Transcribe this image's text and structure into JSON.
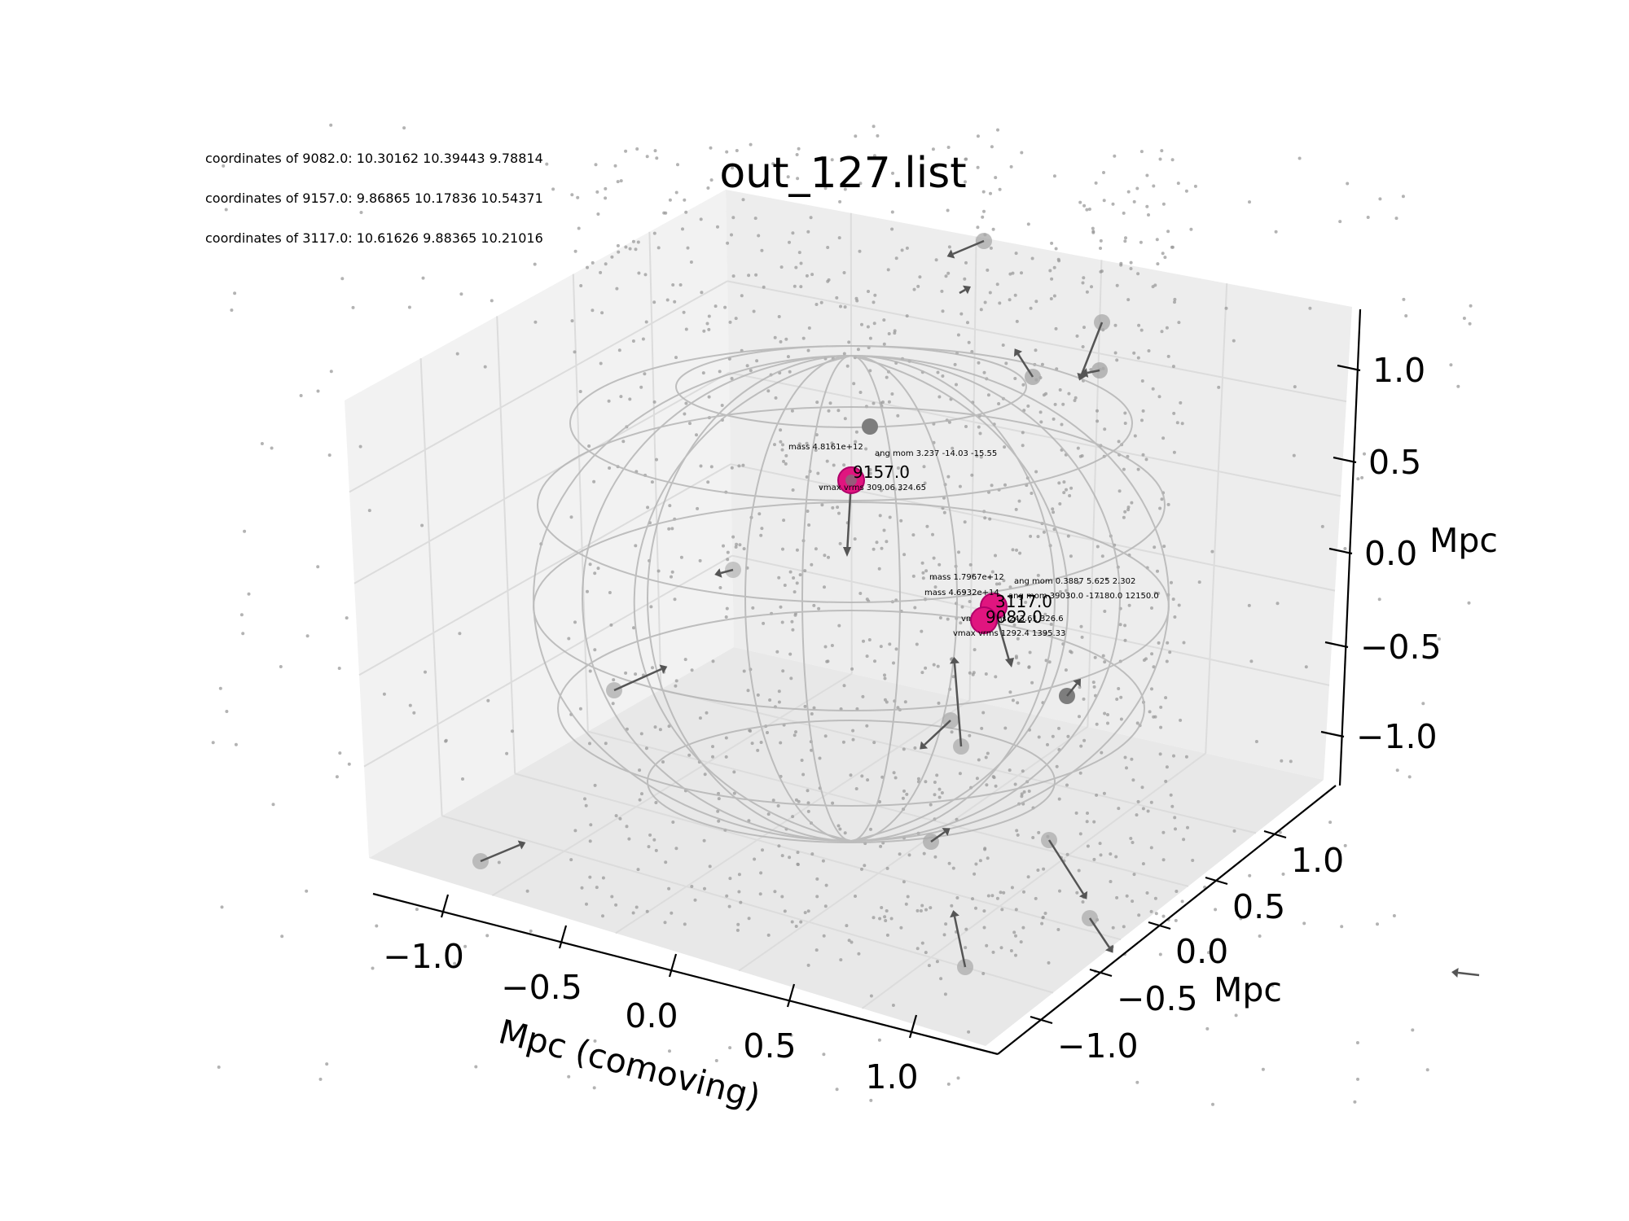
{
  "chart_data": {
    "type": "scatter",
    "projection": "3d",
    "title": "out_127.list",
    "xlabel": "Mpc (comoving)",
    "ylabel": "Mpc",
    "zlabel": "Mpc",
    "xlim": [
      -1.25,
      1.25
    ],
    "ylim": [
      -1.25,
      1.25
    ],
    "zlim": [
      -1.25,
      1.25
    ],
    "x_ticks": [
      "−1.0",
      "−0.5",
      "0.0",
      "0.5",
      "1.0"
    ],
    "y_ticks": [
      "−1.0",
      "−0.5",
      "0.0",
      "0.5",
      "1.0"
    ],
    "z_ticks": [
      "−1.0",
      "−0.5",
      "0.0",
      "0.5",
      "1.0"
    ],
    "grid": true,
    "info_lines": [
      "coordinates of 9082.0: 10.30162 10.39443 9.78814",
      "coordinates of 9157.0: 9.86865 10.17836 10.54371",
      "coordinates of 3117.0: 10.61626 9.88365 10.21016"
    ],
    "highlighted_halos": [
      {
        "id": "9157.0",
        "mass": "mass 4.8161e+12",
        "ang_mom": "ang mom 3.237 -14.03 -15.55",
        "vmax_vrms": "vmax vrms 309.06 324.65",
        "color": "#e0157f"
      },
      {
        "id": "3117.0",
        "mass": "mass 1.7967e+12",
        "ang_mom": "ang mom 0.3887 5.625 2.302",
        "vmax_vrms": "vmax vrms 243.61 326.6",
        "color": "#e0157f"
      },
      {
        "id": "9082.0",
        "mass": "mass 4.6932e+14",
        "ang_mom": "ang mom 39030.0 -17180.0 12150.0",
        "vmax_vrms": "vmax vrms 1292.4 1395.33",
        "color": "#e0157f"
      }
    ],
    "colors": {
      "highlight": "#e0157f",
      "particles": "#9a9a9a",
      "neighbor_halos": "#a8a8a8",
      "arrows": "#555555",
      "sphere_wireframe": "#b5b5b5",
      "pane": "#f2f2f2",
      "grid": "#dddddd"
    }
  }
}
